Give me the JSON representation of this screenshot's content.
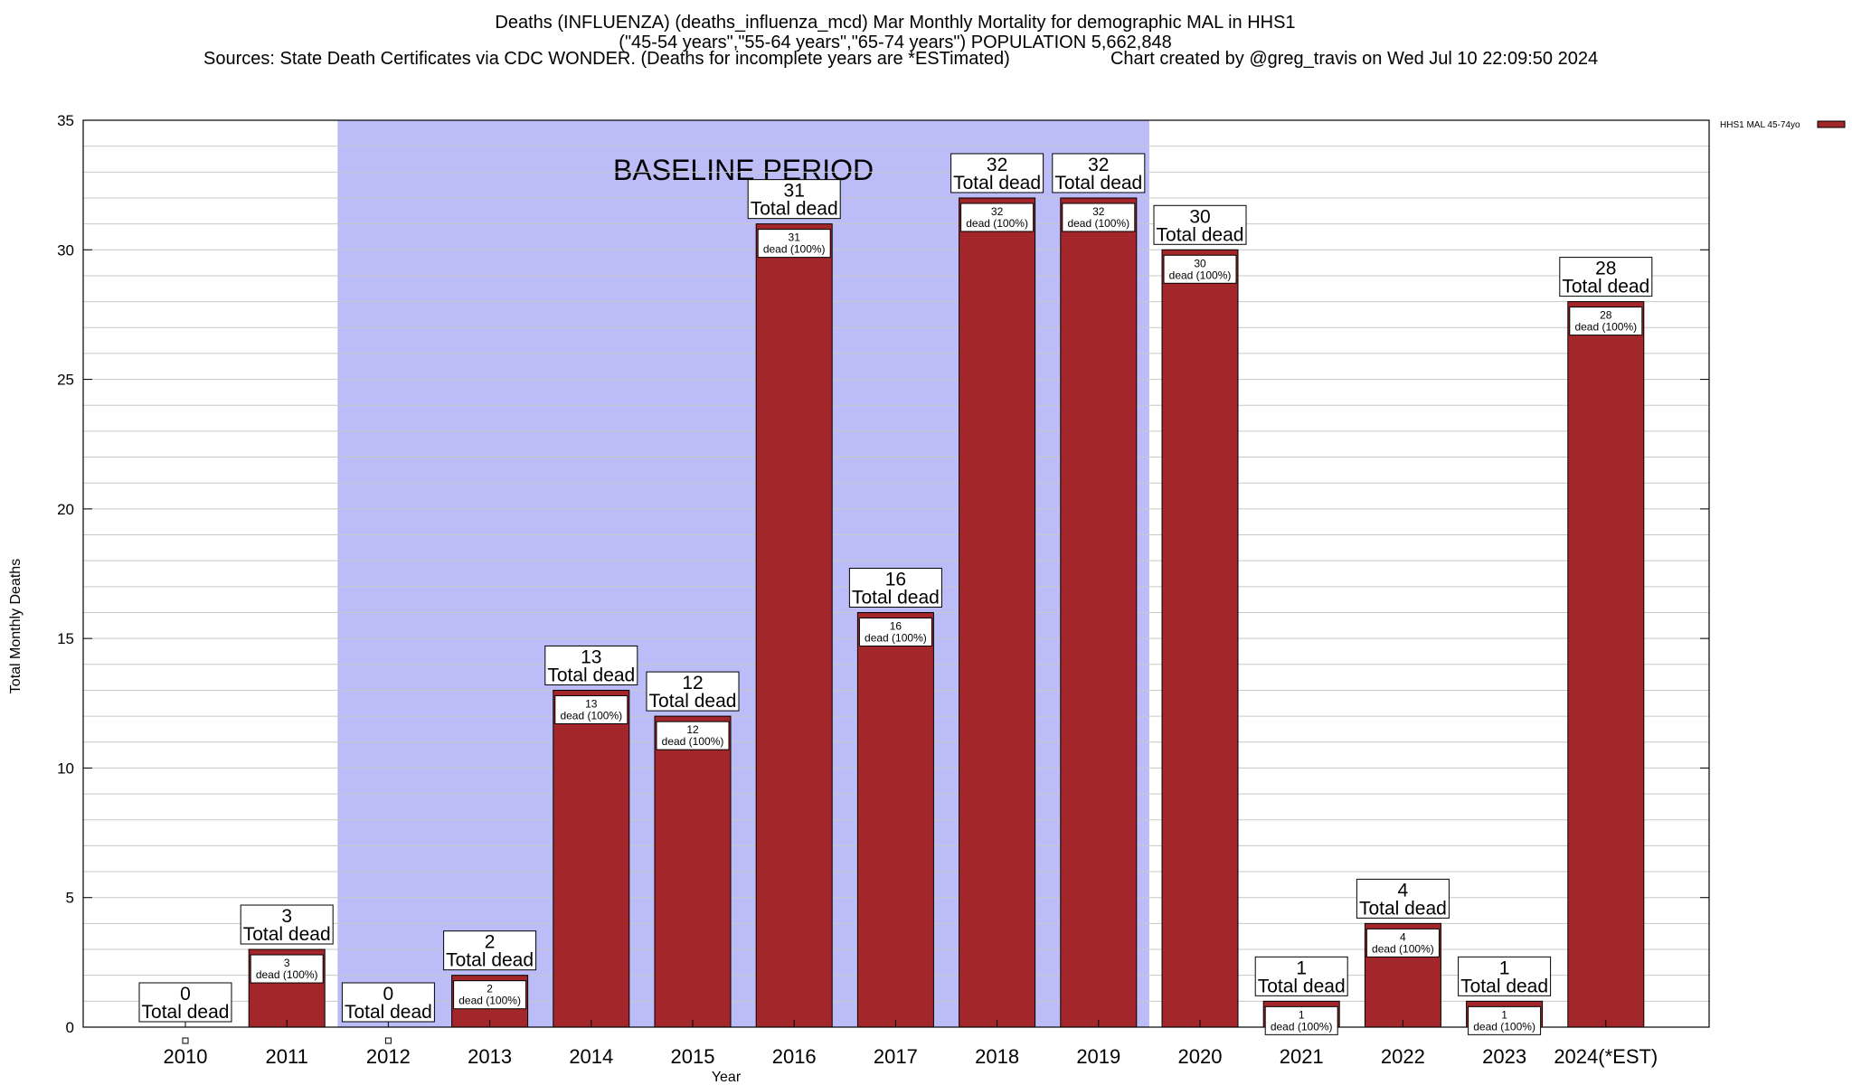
{
  "chart_data": {
    "type": "bar",
    "title_lines": [
      "Deaths (INFLUENZA) (deaths_influenza_mcd) Mar Monthly Mortality for demographic MAL in HHS1",
      "(\"45-54 years\",\"55-64 years\",\"65-74 years\") POPULATION 5,662,848"
    ],
    "sources": "Sources: State Death Certificates via CDC WONDER. (Deaths for incomplete years are *ESTimated)",
    "credit": "Chart created by @greg_travis on Wed Jul 10 22:09:50 2024",
    "xlabel": "Year",
    "ylabel": "Total Monthly Deaths",
    "ylim": [
      0,
      35
    ],
    "yticks": [
      "0",
      "5",
      "10",
      "15",
      "20",
      "25",
      "30",
      "35"
    ],
    "categories": [
      "2010",
      "2011",
      "2012",
      "2013",
      "2014",
      "2015",
      "2016",
      "2017",
      "2018",
      "2019",
      "2020",
      "2021",
      "2022",
      "2023",
      "2024(*EST)"
    ],
    "series": [
      {
        "name": "HHS1 MAL 45-74yo",
        "values": [
          0,
          3,
          0,
          2,
          13,
          12,
          31,
          16,
          32,
          32,
          30,
          1,
          4,
          1,
          28
        ]
      }
    ],
    "total_label_suffix": "Total dead",
    "inner_label_suffix": "dead (100%)",
    "baseline": {
      "label": "BASELINE PERIOD",
      "from_category": "2012",
      "to_category": "2019"
    },
    "legend": {
      "position": "top-right"
    },
    "grid": true,
    "colors": {
      "bar": "#a3262a",
      "baseline": "#bcbcf8",
      "grid": "#c8c8c8"
    }
  }
}
